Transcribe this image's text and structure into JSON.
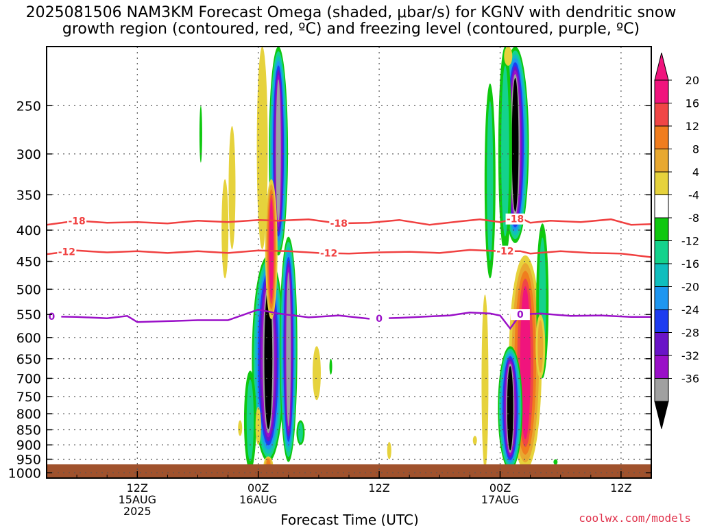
{
  "title_line1": "2025081506 NAM3KM Forecast Omega (shaded, μbar/s) for KGNV with dendritic snow",
  "title_line2": "growth region (contoured, red, ºC) and freezing level (contoured, purple, ºC)",
  "credit": "coolwx.com/models",
  "colors": {
    "red_contour": "#f04040",
    "freezing": "#9a10c8",
    "ground": "#a0522d",
    "credit": "#e0304a"
  },
  "chart_data": {
    "type": "heatmap",
    "xlabel": "Forecast Time (UTC)",
    "x_range_hours": [
      -9,
      51
    ],
    "x_ticks": [
      {
        "h": 0,
        "lines": [
          "12Z",
          "15AUG",
          "2025"
        ]
      },
      {
        "h": 12,
        "lines": [
          "00Z",
          "16AUG"
        ]
      },
      {
        "h": 24,
        "lines": [
          "12Z"
        ]
      },
      {
        "h": 36,
        "lines": [
          "00Z",
          "17AUG"
        ]
      },
      {
        "h": 48,
        "lines": [
          "12Z"
        ]
      }
    ],
    "y_log_pressure": true,
    "y_range_mb": [
      200,
      1020
    ],
    "y_ticks": [
      250,
      300,
      350,
      400,
      450,
      500,
      550,
      600,
      650,
      700,
      750,
      800,
      850,
      900,
      950,
      1000
    ],
    "colorbar": {
      "labels": [
        "20",
        "16",
        "12",
        "8",
        "4",
        "-4",
        "-8",
        "-12",
        "-16",
        "-20",
        "-24",
        "-28",
        "-32",
        "-36"
      ],
      "colors": [
        "#f0147d",
        "#f04646",
        "#f07d1e",
        "#e8a830",
        "#e6d23c",
        "#ffffff",
        "#0fc80f",
        "#14d28c",
        "#10bebe",
        "#1e96f0",
        "#1e3cf0",
        "#6a14c8",
        "#9a10c8",
        "#a0a0a0",
        "#000000"
      ]
    },
    "contours": [
      {
        "name": "-18",
        "color": "#f04040",
        "label_hours": [
          -6,
          20,
          37.5
        ],
        "points": [
          [
            -9,
            392
          ],
          [
            -6,
            386
          ],
          [
            -3,
            389
          ],
          [
            0,
            388
          ],
          [
            3,
            390
          ],
          [
            6,
            386
          ],
          [
            9,
            388
          ],
          [
            12,
            385
          ],
          [
            14,
            386
          ],
          [
            17,
            384
          ],
          [
            20,
            390
          ],
          [
            23,
            389
          ],
          [
            26,
            385
          ],
          [
            29,
            392
          ],
          [
            32,
            387
          ],
          [
            34,
            384
          ],
          [
            36,
            388
          ],
          [
            38,
            382
          ],
          [
            39,
            389
          ],
          [
            41,
            386
          ],
          [
            44,
            388
          ],
          [
            47,
            384
          ],
          [
            49,
            392
          ],
          [
            51,
            391
          ]
        ]
      },
      {
        "name": "-12",
        "color": "#f04040",
        "label_hours": [
          -7,
          19,
          36.5
        ],
        "points": [
          [
            -9,
            438
          ],
          [
            -6,
            432
          ],
          [
            -3,
            435
          ],
          [
            0,
            433
          ],
          [
            3,
            436
          ],
          [
            6,
            433
          ],
          [
            9,
            436
          ],
          [
            12,
            432
          ],
          [
            15,
            433
          ],
          [
            18,
            436
          ],
          [
            21,
            437
          ],
          [
            24,
            435
          ],
          [
            27,
            434
          ],
          [
            30,
            436
          ],
          [
            33,
            431
          ],
          [
            36,
            433
          ],
          [
            38,
            433
          ],
          [
            39,
            437
          ],
          [
            42,
            433
          ],
          [
            45,
            436
          ],
          [
            48,
            437
          ],
          [
            51,
            443
          ]
        ]
      },
      {
        "name": "0",
        "color": "#9a10c8",
        "label_hours": [
          -8.5,
          24,
          38
        ],
        "points": [
          [
            -9,
            554
          ],
          [
            -6,
            555
          ],
          [
            -3,
            558
          ],
          [
            -1,
            553
          ],
          [
            0,
            566
          ],
          [
            3,
            564
          ],
          [
            6,
            562
          ],
          [
            9,
            562
          ],
          [
            12,
            540
          ],
          [
            14,
            548
          ],
          [
            17,
            556
          ],
          [
            20,
            552
          ],
          [
            23,
            559
          ],
          [
            26,
            557
          ],
          [
            29,
            554
          ],
          [
            31,
            552
          ],
          [
            33,
            546
          ],
          [
            35,
            548
          ],
          [
            36,
            552
          ],
          [
            37,
            580
          ],
          [
            38,
            550
          ],
          [
            40,
            548
          ],
          [
            43,
            553
          ],
          [
            46,
            552
          ],
          [
            49,
            555
          ],
          [
            51,
            555
          ]
        ]
      }
    ],
    "omega_features": [
      {
        "h": 13.0,
        "p_top": 320,
        "p_bot": 990,
        "v_min": -36,
        "v_max": 20
      },
      {
        "h": 14.0,
        "p_top": 205,
        "p_bot": 400,
        "v_min": -32
      },
      {
        "h": 15.0,
        "p_top": 400,
        "p_bot": 960,
        "v_min": -28,
        "v_max": 20
      },
      {
        "h": 37.5,
        "p_top": 205,
        "p_bot": 440,
        "v_min": -36
      },
      {
        "h": 38.5,
        "p_top": 450,
        "p_bot": 990,
        "v_max": 20
      },
      {
        "h": 37.0,
        "p_top": 650,
        "p_bot": 990,
        "v_min": -36
      }
    ]
  }
}
